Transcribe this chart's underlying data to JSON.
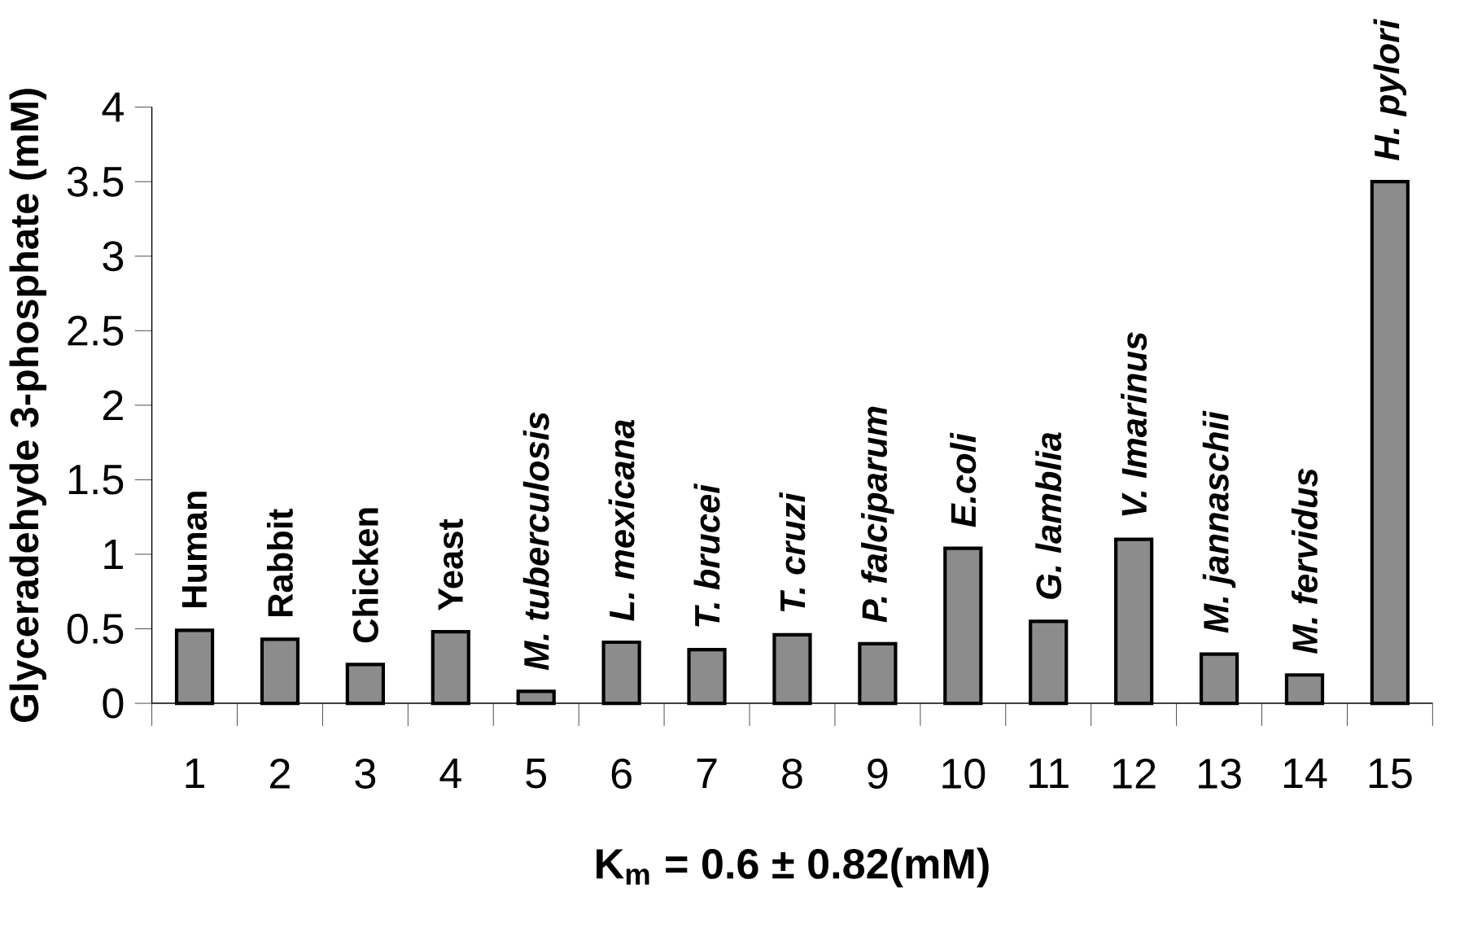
{
  "chart_data": {
    "type": "bar",
    "xlabel": "K$_{m}$ = 0.6 ± 0.82(mM)",
    "ylabel": "Glyceradehyde 3-phosphate (mM)",
    "categories": [
      "1",
      "2",
      "3",
      "4",
      "5",
      "6",
      "7",
      "8",
      "9",
      "10",
      "11",
      "12",
      "13",
      "14",
      "15"
    ],
    "values": [
      0.49,
      0.43,
      0.26,
      0.48,
      0.08,
      0.41,
      0.36,
      0.46,
      0.4,
      1.04,
      0.55,
      1.1,
      0.33,
      0.19,
      3.5
    ],
    "color": "#8c8c8c",
    "ylim": [
      0,
      4
    ],
    "yticks": [
      0,
      0.5,
      1,
      1.5,
      2,
      2.5,
      3,
      3.5,
      4
    ],
    "annotations": [
      {
        "text": "Human",
        "x": "1",
        "y": 0.49
      },
      {
        "text": "Rabbit",
        "x": "2",
        "y": 0.43
      },
      {
        "text": "Chicken",
        "x": "3",
        "y": 0.26
      },
      {
        "text": "Yeast",
        "x": "4",
        "y": 0.48
      },
      {
        "text": "M. tuberculosis",
        "x": "5",
        "y": 0.08
      },
      {
        "text": "L. mexicana",
        "x": "6",
        "y": 0.41
      },
      {
        "text": "T. brucei",
        "x": "7",
        "y": 0.36
      },
      {
        "text": "T. cruzi",
        "x": "8",
        "y": 0.46
      },
      {
        "text": "P. falciparum",
        "x": "9",
        "y": 0.4
      },
      {
        "text": "E.coli",
        "x": "10",
        "y": 1.04
      },
      {
        "text": "G. lamblia",
        "x": "11",
        "y": 0.55
      },
      {
        "text": "V. Imarinus",
        "x": "12",
        "y": 1.1
      },
      {
        "text": "M. jannaschii",
        "x": "13",
        "y": 0.33
      },
      {
        "text": "M. fervidus",
        "x": "14",
        "y": 0.19
      },
      {
        "text": "H. pylori",
        "x": "15",
        "y": 3.5
      }
    ]
  }
}
